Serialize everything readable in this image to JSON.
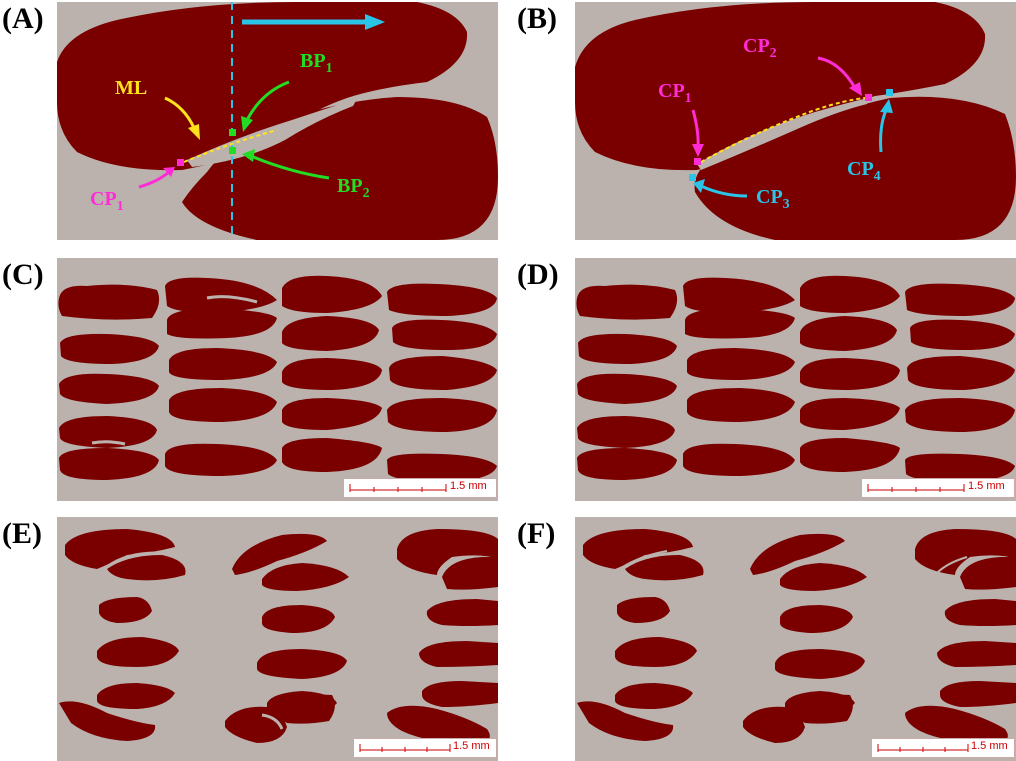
{
  "panels": {
    "a": {
      "label": "(A)",
      "ml": "ML",
      "bp1": "BP",
      "bp1_sub": "1",
      "bp2": "BP",
      "bp2_sub": "2",
      "cp1": "CP",
      "cp1_sub": "1"
    },
    "b": {
      "label": "(B)",
      "cp1": "CP",
      "cp1_sub": "1",
      "cp2": "CP",
      "cp2_sub": "2",
      "cp3": "CP",
      "cp3_sub": "3",
      "cp4": "CP",
      "cp4_sub": "4"
    },
    "c": {
      "label": "(C)",
      "scale": "1.5 mm"
    },
    "d": {
      "label": "(D)",
      "scale": "1.5 mm"
    },
    "e": {
      "label": "(E)",
      "scale": "1.5 mm"
    },
    "f": {
      "label": "(F)",
      "scale": "1.5 mm"
    }
  },
  "colors": {
    "background": "#bbb2ae",
    "object": "#7a0000",
    "magenta": "#ff2bd6",
    "green": "#22dd22",
    "cyan": "#29c4e8",
    "yellow": "#ffe21a"
  }
}
